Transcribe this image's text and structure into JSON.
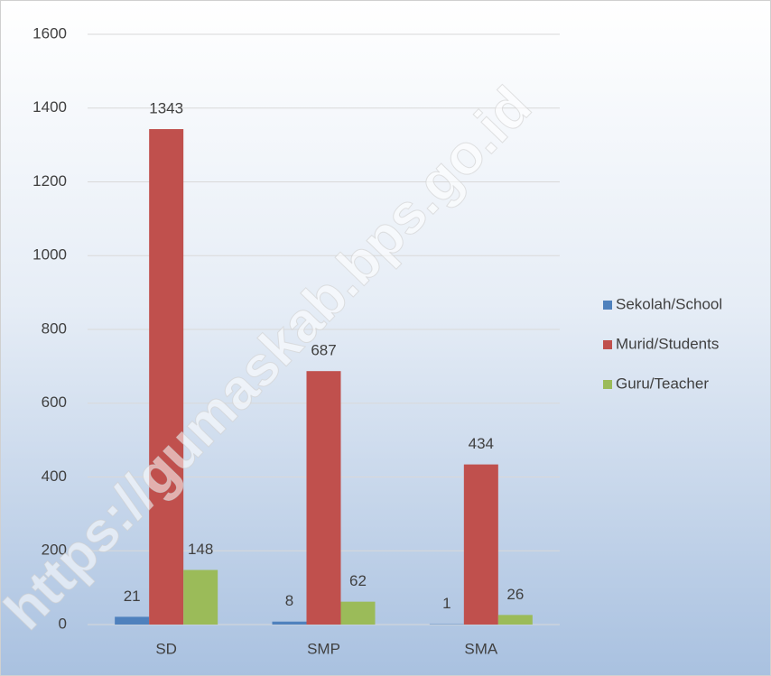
{
  "chart_data": {
    "type": "bar",
    "categories": [
      "SD",
      "SMP",
      "SMA"
    ],
    "series": [
      {
        "name": "Sekolah/School",
        "color": "#4f81bd",
        "values": [
          21,
          8,
          1
        ]
      },
      {
        "name": "Murid/Students",
        "color": "#c0504d",
        "values": [
          1343,
          687,
          434
        ]
      },
      {
        "name": "Guru/Teacher",
        "color": "#9bbb59",
        "values": [
          148,
          62,
          26
        ]
      }
    ],
    "ylim": [
      0,
      1600
    ],
    "yticks": [
      0,
      200,
      400,
      600,
      800,
      1000,
      1200,
      1400,
      1600
    ],
    "grid": true,
    "legend": "right",
    "watermark": "https://gumaskab.bps.go.id"
  }
}
